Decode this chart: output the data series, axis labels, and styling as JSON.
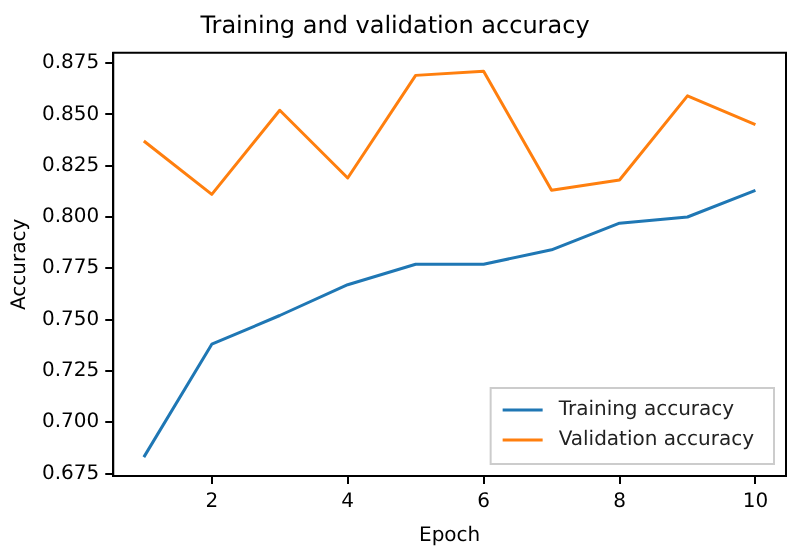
{
  "chart_data": {
    "type": "line",
    "title": "Training and validation accuracy",
    "xlabel": "Epoch",
    "ylabel": "Accuracy",
    "x": [
      1,
      2,
      3,
      4,
      5,
      6,
      7,
      8,
      9,
      10
    ],
    "series": [
      {
        "name": "Training accuracy",
        "color": "#1f77b4",
        "values": [
          0.683,
          0.738,
          0.752,
          0.767,
          0.777,
          0.777,
          0.784,
          0.797,
          0.8,
          0.813
        ]
      },
      {
        "name": "Validation accuracy",
        "color": "#ff7f0e",
        "values": [
          0.837,
          0.811,
          0.852,
          0.819,
          0.869,
          0.871,
          0.813,
          0.818,
          0.859,
          0.845
        ]
      }
    ],
    "xlim": [
      0.55,
      10.45
    ],
    "xticks": [
      2,
      4,
      6,
      8,
      10
    ],
    "ylim": [
      0.6738,
      0.88
    ],
    "yticks": [
      {
        "value": 0.675,
        "label": "0.675"
      },
      {
        "value": 0.7,
        "label": "0.700"
      },
      {
        "value": 0.725,
        "label": "0.725"
      },
      {
        "value": 0.75,
        "label": "0.750"
      },
      {
        "value": 0.775,
        "label": "0.775"
      },
      {
        "value": 0.8,
        "label": "0.800"
      },
      {
        "value": 0.825,
        "label": "0.825"
      },
      {
        "value": 0.85,
        "label": "0.850"
      },
      {
        "value": 0.875,
        "label": "0.875"
      }
    ],
    "legend": "bottom right",
    "grid": false,
    "marker": "none",
    "line_style": "solid"
  }
}
